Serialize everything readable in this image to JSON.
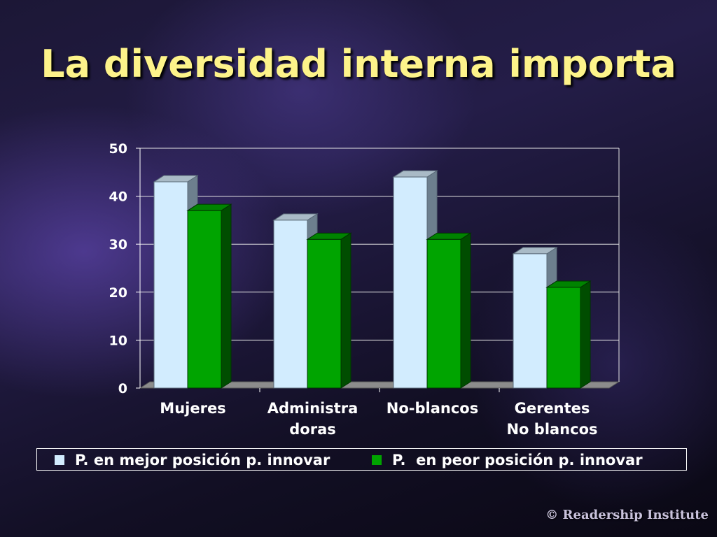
{
  "page": {
    "title": "La diversidad interna importa",
    "credit": "© Readership Institute"
  },
  "colors": {
    "title": "#fdf38a",
    "series1": "#d2ecfe",
    "series2": "#00a400",
    "text": "#ffffff"
  },
  "chart_data": {
    "type": "bar",
    "categories": [
      [
        "Mujeres"
      ],
      [
        "Administra",
        "doras"
      ],
      [
        "No-blancos"
      ],
      [
        "Gerentes",
        "No blancos"
      ]
    ],
    "series": [
      {
        "name": "P. en mejor posición p. innovar",
        "values": [
          43,
          35,
          44,
          28
        ]
      },
      {
        "name": "P.  en peor posición p. innovar",
        "values": [
          37,
          31,
          31,
          21
        ]
      }
    ],
    "ylim": [
      0,
      50
    ],
    "yticks": [
      "0",
      "10",
      "20",
      "30",
      "40",
      "50"
    ],
    "grid": true,
    "legend_position": "bottom",
    "style": "3d"
  }
}
